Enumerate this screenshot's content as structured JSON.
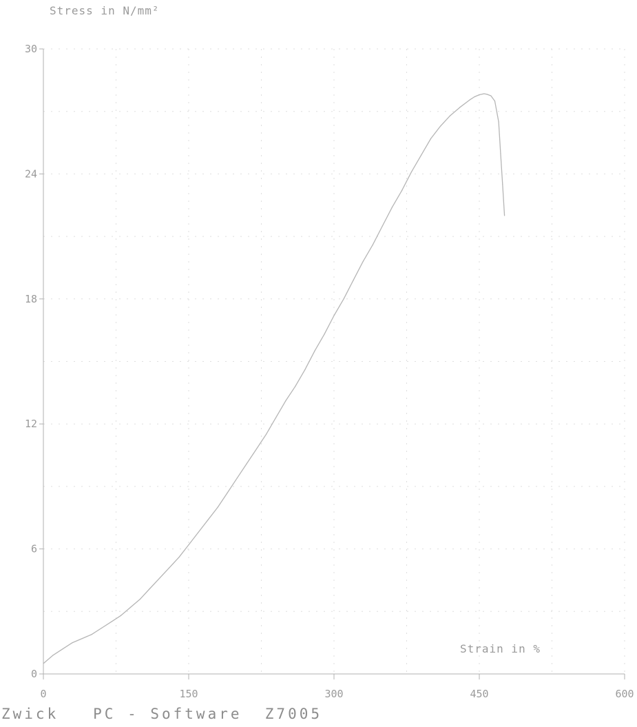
{
  "footer_text": "Zwick   PC - Software  Z7005",
  "chart_data": {
    "type": "line",
    "title": "",
    "xlabel": "Strain in %",
    "ylabel": "Stress in N/mm²",
    "xlim": [
      0,
      600
    ],
    "ylim": [
      0,
      30
    ],
    "x_ticks": [
      0,
      150,
      300,
      450,
      600
    ],
    "x_tick_labels": [
      "0",
      "150",
      "300",
      "450",
      "600"
    ],
    "y_ticks": [
      0,
      6,
      12,
      18,
      24,
      30
    ],
    "y_tick_labels": [
      "0",
      "6",
      "12",
      "18",
      "24",
      "30"
    ],
    "grid": true,
    "legend": "none",
    "colors": {
      "line": "#b5b5b5",
      "axis": "#b0b0b0",
      "grid": "#dedede",
      "text": "#9a9a9a"
    },
    "series": [
      {
        "x": [
          0,
          10,
          20,
          30,
          40,
          50,
          60,
          70,
          80,
          90,
          100,
          110,
          120,
          130,
          140,
          150,
          160,
          170,
          180,
          190,
          200,
          210,
          220,
          230,
          240,
          250,
          260,
          270,
          280,
          290,
          300,
          310,
          320,
          330,
          340,
          350,
          360,
          370,
          380,
          390,
          400,
          410,
          420,
          430,
          440,
          445,
          450,
          455,
          458,
          462,
          466,
          470,
          472,
          474,
          476
        ],
        "y": [
          0.5,
          0.9,
          1.2,
          1.5,
          1.7,
          1.9,
          2.2,
          2.5,
          2.8,
          3.2,
          3.6,
          4.1,
          4.6,
          5.1,
          5.6,
          6.2,
          6.8,
          7.4,
          8.0,
          8.7,
          9.4,
          10.1,
          10.8,
          11.5,
          12.3,
          13.1,
          13.8,
          14.6,
          15.5,
          16.3,
          17.2,
          18.0,
          18.9,
          19.8,
          20.6,
          21.5,
          22.4,
          23.2,
          24.1,
          24.9,
          25.7,
          26.3,
          26.8,
          27.2,
          27.55,
          27.7,
          27.8,
          27.85,
          27.82,
          27.75,
          27.5,
          26.5,
          25.0,
          23.5,
          22.0
        ]
      }
    ]
  }
}
